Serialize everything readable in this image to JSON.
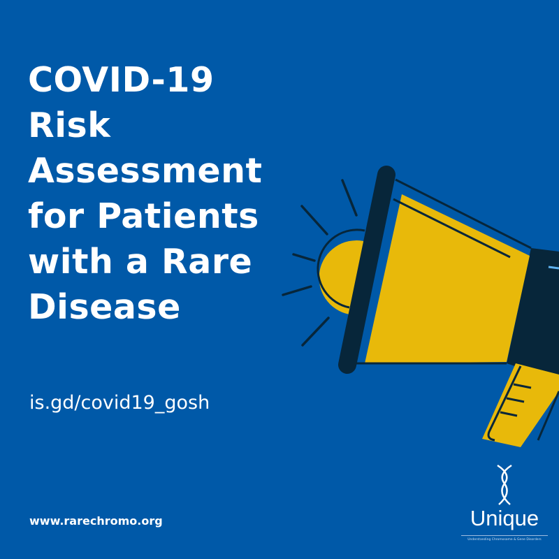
{
  "title_lines": [
    "COVID-19",
    "Risk",
    "Assessment",
    "for Patients",
    "with a Rare",
    "Disease"
  ],
  "link": "is.gd/covid19_gosh",
  "website": "www.rarechromo.org",
  "logo": {
    "name": "Unique",
    "tagline": "Understanding Chromosome & Gene Disorders"
  },
  "colors": {
    "background": "#0059a8",
    "yellow": "#e8b90a",
    "dark": "#07263a",
    "text": "#ffffff"
  },
  "illustration": "megaphone-icon"
}
